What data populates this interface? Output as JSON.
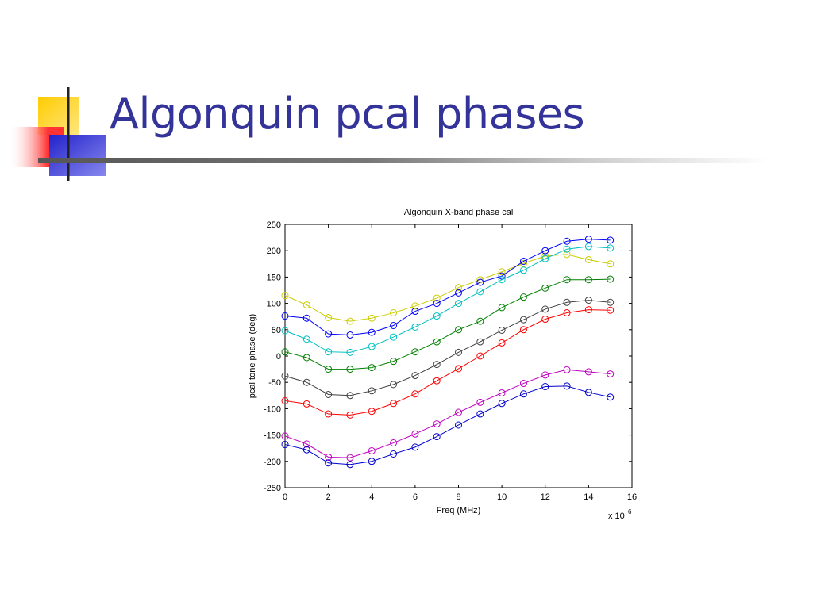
{
  "slide": {
    "title": "Algonquin pcal phases"
  },
  "colors": {
    "title": "#333399",
    "logo_yellow": "#ffcc00",
    "logo_blue": "#3333cc",
    "logo_red": "#ff3333"
  },
  "chart_data": {
    "type": "line",
    "title": "Algonquin X-band phase cal",
    "xlabel": "Freq (MHz)",
    "ylabel": "pcal tone phase (deg)",
    "x_multiplier_label": "x 10",
    "x_multiplier_exp": "6",
    "xlim": [
      0,
      16
    ],
    "ylim": [
      -250,
      250
    ],
    "xticks": [
      0,
      2,
      4,
      6,
      8,
      10,
      12,
      14,
      16
    ],
    "yticks": [
      250,
      200,
      150,
      100,
      50,
      0,
      -50,
      -100,
      -150,
      -200,
      -250
    ],
    "marker": "circle",
    "grid": false,
    "x": [
      0,
      1,
      2,
      3,
      4,
      5,
      6,
      7,
      8,
      9,
      10,
      11,
      12,
      13,
      14,
      15
    ],
    "series": [
      {
        "color": "#cccc00",
        "values": [
          115,
          97,
          73,
          66,
          72,
          82,
          95,
          110,
          130,
          145,
          160,
          176,
          190,
          193,
          183,
          175
        ]
      },
      {
        "color": "#0000ff",
        "values": [
          76,
          72,
          42,
          40,
          45,
          58,
          85,
          100,
          120,
          140,
          152,
          180,
          200,
          218,
          222,
          220
        ]
      },
      {
        "color": "#00bfbf",
        "values": [
          48,
          32,
          8,
          7,
          18,
          36,
          55,
          76,
          100,
          122,
          145,
          163,
          185,
          203,
          208,
          205
        ]
      },
      {
        "color": "#008000",
        "values": [
          8,
          -3,
          -25,
          -25,
          -22,
          -10,
          8,
          27,
          50,
          66,
          92,
          112,
          129,
          145,
          145,
          146
        ]
      },
      {
        "color": "#404040",
        "values": [
          -38,
          -50,
          -73,
          -75,
          -66,
          -54,
          -37,
          -16,
          7,
          27,
          49,
          69,
          89,
          102,
          106,
          102
        ]
      },
      {
        "color": "#ff0000",
        "values": [
          -85,
          -91,
          -110,
          -112,
          -105,
          -90,
          -72,
          -47,
          -24,
          0,
          25,
          50,
          70,
          82,
          88,
          87
        ]
      },
      {
        "color": "#bf00bf",
        "values": [
          -152,
          -167,
          -192,
          -193,
          -180,
          -165,
          -148,
          -129,
          -107,
          -88,
          -70,
          -52,
          -36,
          -26,
          -30,
          -34
        ]
      },
      {
        "color": "#0000cc",
        "values": [
          -168,
          -178,
          -203,
          -206,
          -200,
          -186,
          -173,
          -153,
          -131,
          -110,
          -90,
          -72,
          -58,
          -57,
          -69,
          -78
        ]
      }
    ]
  }
}
